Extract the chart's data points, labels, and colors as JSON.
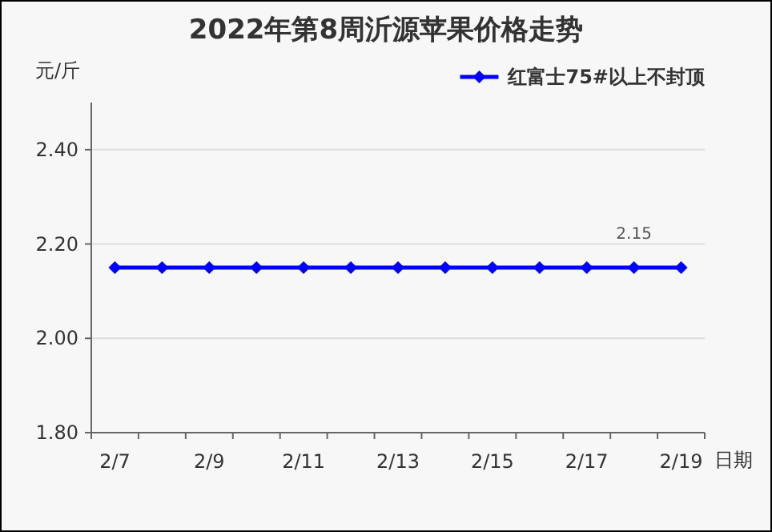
{
  "chart_data": {
    "type": "line",
    "title": "2022年第8周沂源苹果价格走势",
    "ylabel": "元/斤",
    "xlabel": "日期",
    "categories": [
      "2/7",
      null,
      "2/9",
      null,
      "2/11",
      null,
      "2/13",
      null,
      "2/15",
      null,
      "2/17",
      null,
      "2/19"
    ],
    "series": [
      {
        "name": "红富士75#以上不封顶",
        "color": "#0000ff",
        "values": [
          2.15,
          2.15,
          2.15,
          2.15,
          2.15,
          2.15,
          2.15,
          2.15,
          2.15,
          2.15,
          2.15,
          2.15,
          2.15
        ],
        "value_labels": [
          null,
          null,
          null,
          null,
          null,
          null,
          null,
          null,
          null,
          null,
          null,
          "2.15",
          null
        ]
      }
    ],
    "ylim": [
      1.8,
      2.5
    ],
    "yticks": [
      {
        "value": 1.8,
        "label": "1.80"
      },
      {
        "value": 2.0,
        "label": "2.00"
      },
      {
        "value": 2.2,
        "label": "2.20"
      },
      {
        "value": 2.4,
        "label": "2.40"
      }
    ],
    "grid": "y",
    "legend": "top right",
    "marker": "diamond",
    "line_style": "solid"
  }
}
